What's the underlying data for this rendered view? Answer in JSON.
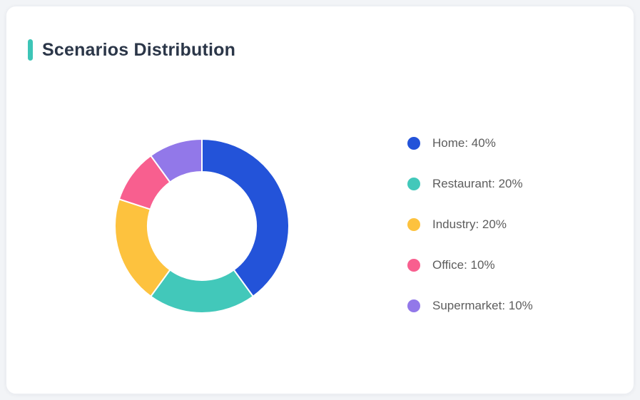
{
  "page": {
    "background": "#f2f4f7"
  },
  "card": {
    "title": "Scenarios Distribution",
    "accent_color": "#3dc5b7",
    "background": "#ffffff"
  },
  "chart_data": {
    "type": "pie",
    "subtype": "donut",
    "title": "Scenarios Distribution",
    "unit": "%",
    "categories": [
      "Home",
      "Restaurant",
      "Industry",
      "Office",
      "Supermarket"
    ],
    "values": [
      40,
      20,
      20,
      10,
      10
    ],
    "colors": [
      "#2353d9",
      "#42c8ba",
      "#fdc23e",
      "#f85f8f",
      "#9278e9"
    ],
    "legend": {
      "position": "right",
      "format": "{name}: {value}%",
      "labels": [
        "Home: 40%",
        "Restaurant: 20%",
        "Industry: 20%",
        "Office: 10%",
        "Supermarket: 10%"
      ]
    },
    "start_angle_deg": 0,
    "clockwise": true,
    "outer_radius_px": 122,
    "inner_radius_ratio": 0.62,
    "segment_gap_color": "#ffffff"
  }
}
